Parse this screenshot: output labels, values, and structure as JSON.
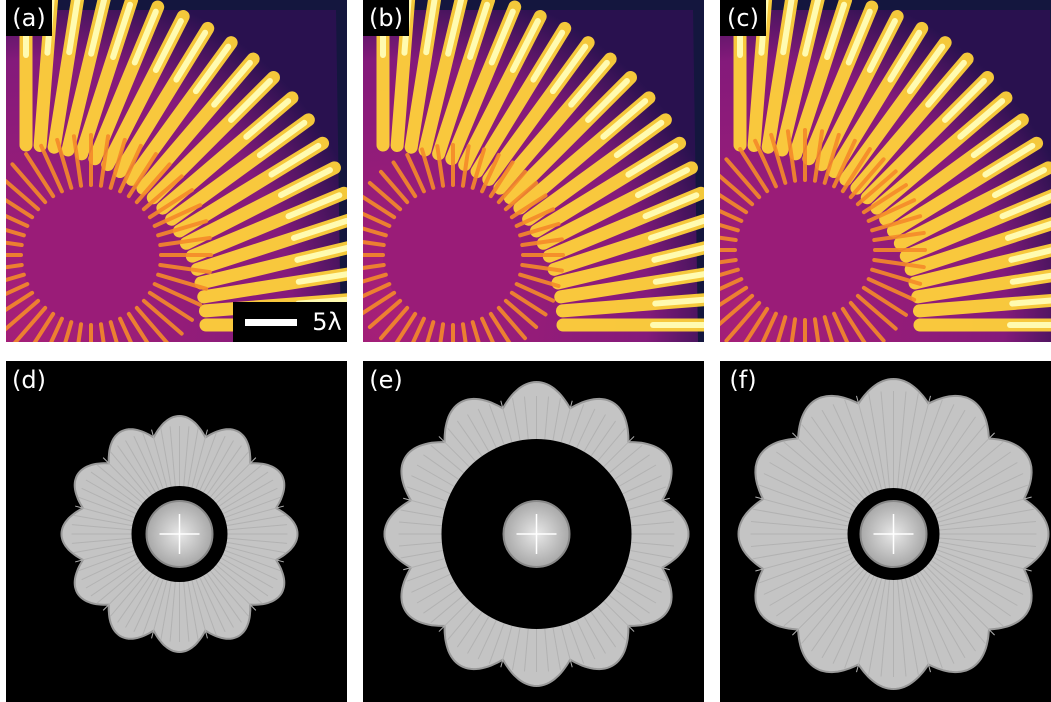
{
  "panels": [
    {
      "label": "(a)"
    },
    {
      "label": "(b)"
    },
    {
      "label": "(c)"
    },
    {
      "label": "(d)"
    },
    {
      "label": "(e)"
    },
    {
      "label": "(f)"
    }
  ],
  "scale_bar": {
    "label": "5λ"
  }
}
